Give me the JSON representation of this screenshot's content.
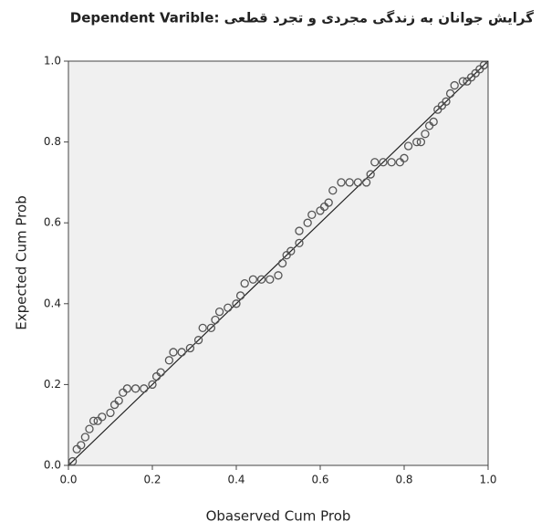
{
  "chart_data": {
    "type": "scatter",
    "title": "Dependent Varible: گرایش جوانان به زندگی مجردی و تجرد قطعی",
    "x_label": "Obaserved Cum Prob",
    "y_label": "Expected Cum Prob",
    "xlim": [
      0,
      1
    ],
    "ylim": [
      0,
      1
    ],
    "xticks": [
      {
        "value": 0,
        "label": "0.0"
      },
      0.2,
      0.4,
      0.6,
      0.8,
      {
        "value": 1,
        "label": "1.0"
      }
    ],
    "yticks": [
      {
        "value": 0,
        "label": "0.0"
      },
      0.2,
      0.4,
      0.6,
      0.8,
      {
        "value": 1,
        "label": "1.0"
      }
    ],
    "color": "#555555",
    "x": [
      0.01,
      0.02,
      0.03,
      0.04,
      0.05,
      0.06,
      0.07,
      0.08,
      0.1,
      0.11,
      0.12,
      0.13,
      0.14,
      0.16,
      0.18,
      0.2,
      0.21,
      0.22,
      0.24,
      0.25,
      0.27,
      0.29,
      0.31,
      0.32,
      0.34,
      0.35,
      0.36,
      0.38,
      0.4,
      0.41,
      0.42,
      0.44,
      0.46,
      0.48,
      0.5,
      0.51,
      0.52,
      0.53,
      0.55,
      0.55,
      0.57,
      0.58,
      0.6,
      0.61,
      0.62,
      0.63,
      0.65,
      0.67,
      0.69,
      0.71,
      0.72,
      0.73,
      0.75,
      0.77,
      0.79,
      0.8,
      0.81,
      0.83,
      0.84,
      0.85,
      0.86,
      0.87,
      0.88,
      0.89,
      0.9,
      0.91,
      0.92,
      0.94,
      0.95,
      0.96,
      0.97,
      0.98,
      0.99
    ],
    "y": [
      0.01,
      0.04,
      0.05,
      0.07,
      0.09,
      0.11,
      0.11,
      0.12,
      0.13,
      0.15,
      0.16,
      0.18,
      0.19,
      0.19,
      0.19,
      0.2,
      0.22,
      0.23,
      0.26,
      0.28,
      0.28,
      0.29,
      0.31,
      0.34,
      0.34,
      0.36,
      0.38,
      0.39,
      0.4,
      0.42,
      0.45,
      0.46,
      0.46,
      0.46,
      0.47,
      0.5,
      0.52,
      0.53,
      0.55,
      0.58,
      0.6,
      0.62,
      0.63,
      0.64,
      0.65,
      0.68,
      0.7,
      0.7,
      0.7,
      0.7,
      0.72,
      0.75,
      0.75,
      0.75,
      0.75,
      0.76,
      0.79,
      0.8,
      0.8,
      0.82,
      0.84,
      0.85,
      0.88,
      0.89,
      0.9,
      0.92,
      0.94,
      0.95,
      0.95,
      0.96,
      0.97,
      0.98,
      0.99
    ]
  }
}
